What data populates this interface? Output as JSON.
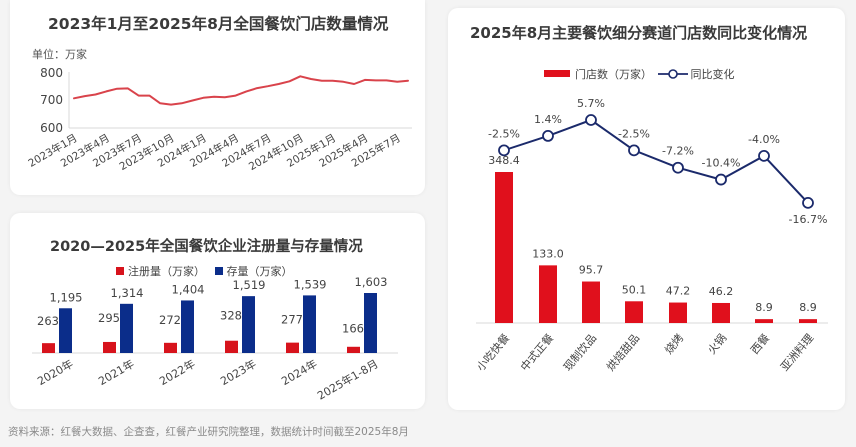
{
  "chart_data": [
    {
      "type": "line",
      "title": "2023年1月至2025年8月全国餐饮门店数量情况",
      "unit_label": "单位：万家",
      "xlabel": "",
      "ylabel": "万家",
      "ylim": [
        600,
        800
      ],
      "yticks": [
        600,
        700,
        800
      ],
      "xtick_labels": [
        "2023年1月",
        "2023年4月",
        "2023年7月",
        "2023年10月",
        "2024年1月",
        "2024年4月",
        "2024年7月",
        "2024年10月",
        "2025年1月",
        "2025年4月",
        "2025年7月"
      ],
      "x": [
        "2023-01",
        "2023-02",
        "2023-03",
        "2023-04",
        "2023-05",
        "2023-06",
        "2023-07",
        "2023-08",
        "2023-09",
        "2023-10",
        "2023-11",
        "2023-12",
        "2024-01",
        "2024-02",
        "2024-03",
        "2024-04",
        "2024-05",
        "2024-06",
        "2024-07",
        "2024-08",
        "2024-09",
        "2024-10",
        "2024-11",
        "2024-12",
        "2025-01",
        "2025-02",
        "2025-03",
        "2025-04",
        "2025-05",
        "2025-06",
        "2025-07",
        "2025-08"
      ],
      "series": [
        {
          "name": "全国餐饮门店数量（万家）",
          "color": "#d9434b",
          "values": [
            708,
            716,
            722,
            733,
            743,
            744,
            718,
            718,
            690,
            685,
            690,
            700,
            710,
            714,
            712,
            718,
            733,
            745,
            752,
            760,
            770,
            788,
            778,
            772,
            772,
            768,
            760,
            775,
            773,
            773,
            768,
            772
          ]
        }
      ],
      "grid": false,
      "legend": "none"
    },
    {
      "type": "bar",
      "title": "2020—2025年全国餐饮企业注册量与存量情况",
      "categories": [
        "2020年",
        "2021年",
        "2022年",
        "2023年",
        "2024年",
        "2025年1-8月"
      ],
      "series": [
        {
          "name": "注册量（万家）",
          "color": "#d7131c",
          "values": [
            263,
            295,
            272,
            328,
            277,
            166
          ],
          "labels": [
            "263",
            "295",
            "272",
            "328",
            "277",
            "166"
          ]
        },
        {
          "name": "存量（万家）",
          "color": "#0b2d8a",
          "values": [
            1195,
            1314,
            1404,
            1519,
            1539,
            1603
          ],
          "labels": [
            "1,195",
            "1,314",
            "1,404",
            "1,519",
            "1,539",
            "1,603"
          ]
        }
      ],
      "legend": "top",
      "grid": false
    },
    {
      "type": "bar+line",
      "title": "2025年8月主要餐饮细分赛道门店数同比变化情况",
      "categories": [
        "小吃快餐",
        "中式正餐",
        "现制饮品",
        "烘焙甜品",
        "烧烤",
        "火锅",
        "西餐",
        "亚洲料理"
      ],
      "series": [
        {
          "name": "门店数（万家）",
          "type": "bar",
          "color": "#e0101c",
          "values": [
            348.4,
            133.0,
            95.7,
            50.1,
            47.2,
            46.2,
            8.9,
            8.9
          ],
          "labels": [
            "348.4",
            "133.0",
            "95.7",
            "50.1",
            "47.2",
            "46.2",
            "8.9",
            "8.9"
          ]
        },
        {
          "name": "同比变化",
          "type": "line",
          "color": "#1b2a6b",
          "values": [
            -2.5,
            1.4,
            5.7,
            -2.5,
            -7.2,
            -10.4,
            -4.0,
            -16.7
          ],
          "labels": [
            "-2.5%",
            "1.4%",
            "5.7%",
            "-2.5%",
            "-7.2%",
            "-10.4%",
            "-4.0%",
            "-16.7%"
          ]
        }
      ],
      "legend": "top",
      "grid": false
    }
  ],
  "stores_chart": {
    "title": "2023年1月至2025年8月全国餐饮门店数量情况",
    "unit": "单位：万家",
    "yticks": [
      "800",
      "700",
      "600"
    ],
    "xticks": [
      "2023年1月",
      "2023年4月",
      "2023年7月",
      "2023年10月",
      "2024年1月",
      "2024年4月",
      "2024年7月",
      "2024年10月",
      "2025年1月",
      "2025年4月",
      "2025年7月"
    ]
  },
  "reg_chart": {
    "title": "2020—2025年全国餐饮企业注册量与存量情况",
    "legend": [
      "注册量（万家）",
      "存量（万家）"
    ],
    "categories": [
      "2020年",
      "2021年",
      "2022年",
      "2023年",
      "2024年",
      "2025年1-8月"
    ],
    "reg_labels": [
      "263",
      "295",
      "272",
      "328",
      "277",
      "166"
    ],
    "stock_labels": [
      "1,195",
      "1,314",
      "1,404",
      "1,519",
      "1,539",
      "1,603"
    ]
  },
  "seg_chart": {
    "title": "2025年8月主要餐饮细分赛道门店数同比变化情况",
    "legend": [
      "门店数（万家）",
      "同比变化"
    ],
    "categories": [
      "小吃快餐",
      "中式正餐",
      "现制饮品",
      "烘焙甜品",
      "烧烤",
      "火锅",
      "西餐",
      "亚洲料理"
    ],
    "bar_labels": [
      "348.4",
      "133.0",
      "95.7",
      "50.1",
      "47.2",
      "46.2",
      "8.9",
      "8.9"
    ],
    "line_labels": [
      "-2.5%",
      "1.4%",
      "5.7%",
      "-2.5%",
      "-7.2%",
      "-10.4%",
      "-4.0%",
      "-16.7%"
    ]
  },
  "footer": {
    "source": "资料来源：红餐大数据、企查查，红餐产业研究院整理，数据统计时间截至2025年8月"
  },
  "colors": {
    "line_red": "#d9434b",
    "reg_red": "#d7131c",
    "stock_blue": "#0b2d8a",
    "bar_red": "#e0101c",
    "yoy_navy": "#1b2a6b"
  }
}
